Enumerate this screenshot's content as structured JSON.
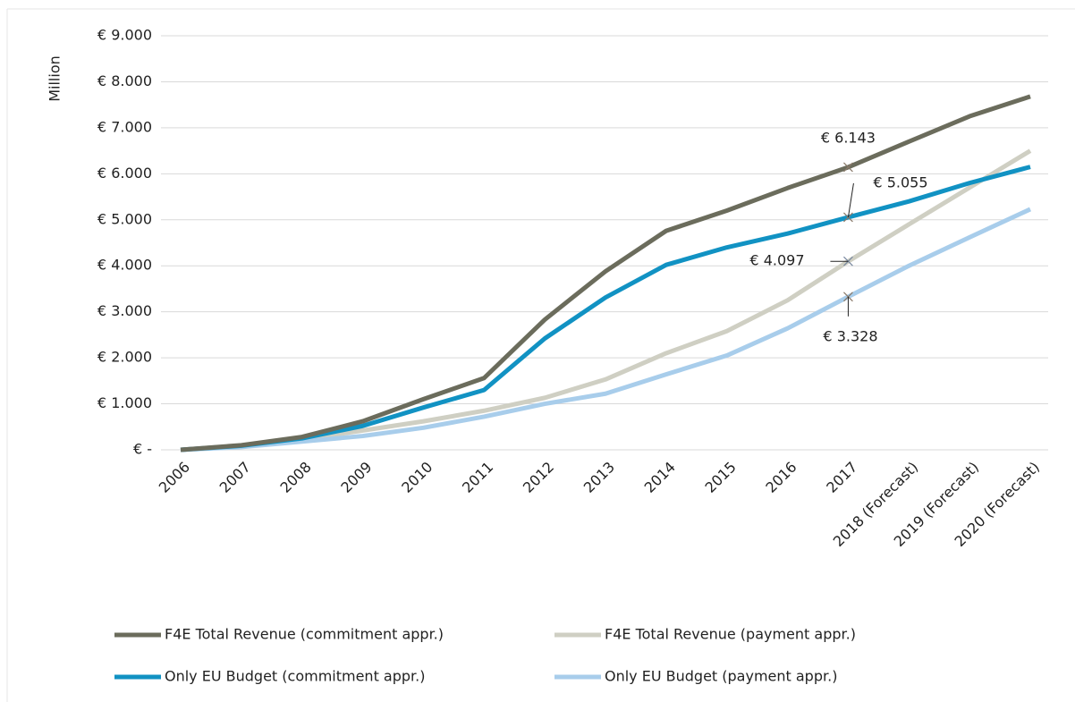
{
  "chart_data": {
    "type": "line",
    "y_label": "Million",
    "categories": [
      "2006",
      "2007",
      "2008",
      "2009",
      "2010",
      "2011",
      "2012",
      "2013",
      "2014",
      "2015",
      "2016",
      "2017",
      "2018 (Forecast)",
      "2019 (Forecast)",
      "2020 (Forecast)"
    ],
    "ylim": [
      0,
      9000
    ],
    "yticks": [
      {
        "value": 0,
        "label": "€ -"
      },
      {
        "value": 1000,
        "label": "€ 1.000"
      },
      {
        "value": 2000,
        "label": "€ 2.000"
      },
      {
        "value": 3000,
        "label": "€ 3.000"
      },
      {
        "value": 4000,
        "label": "€ 4.000"
      },
      {
        "value": 5000,
        "label": "€ 5.000"
      },
      {
        "value": 6000,
        "label": "€ 6.000"
      },
      {
        "value": 7000,
        "label": "€ 7.000"
      },
      {
        "value": 8000,
        "label": "€ 8.000"
      },
      {
        "value": 9000,
        "label": "€ 9.000"
      }
    ],
    "grid": true,
    "series": [
      {
        "name": "F4E Total Revenue (commitment appr.)",
        "color": "#6b6c5c",
        "values": [
          0,
          100,
          280,
          620,
          1100,
          1560,
          2830,
          3880,
          4760,
          5200,
          5690,
          6143,
          6700,
          7250,
          7680
        ],
        "value_labels": [
          null,
          null,
          null,
          null,
          null,
          null,
          null,
          null,
          null,
          null,
          null,
          "€ 6.143",
          null,
          null,
          null
        ]
      },
      {
        "name": "F4E Total Revenue (payment appr.)",
        "color": "#cfcfc3",
        "values": [
          0,
          80,
          230,
          420,
          620,
          850,
          1130,
          1530,
          2100,
          2580,
          3250,
          4097,
          4900,
          5700,
          6500
        ],
        "value_labels": [
          null,
          null,
          null,
          null,
          null,
          null,
          null,
          null,
          null,
          null,
          null,
          "€ 4.097",
          null,
          null,
          null
        ]
      },
      {
        "name": "Only EU Budget (commitment appr.)",
        "color": "#1192c3",
        "values": [
          0,
          90,
          250,
          520,
          920,
          1300,
          2420,
          3310,
          4020,
          4400,
          4700,
          5055,
          5400,
          5800,
          6150
        ],
        "value_labels": [
          null,
          null,
          null,
          null,
          null,
          null,
          null,
          null,
          null,
          null,
          null,
          "€ 5.055",
          null,
          null,
          null
        ]
      },
      {
        "name": "Only EU Budget (payment appr.)",
        "color": "#a8cdeb",
        "values": [
          0,
          60,
          180,
          300,
          480,
          720,
          1000,
          1220,
          1640,
          2050,
          2640,
          3328,
          4000,
          4620,
          5230
        ],
        "value_labels": [
          null,
          null,
          null,
          null,
          null,
          null,
          null,
          null,
          null,
          null,
          null,
          "€ 3.328",
          null,
          null,
          null
        ]
      }
    ]
  }
}
